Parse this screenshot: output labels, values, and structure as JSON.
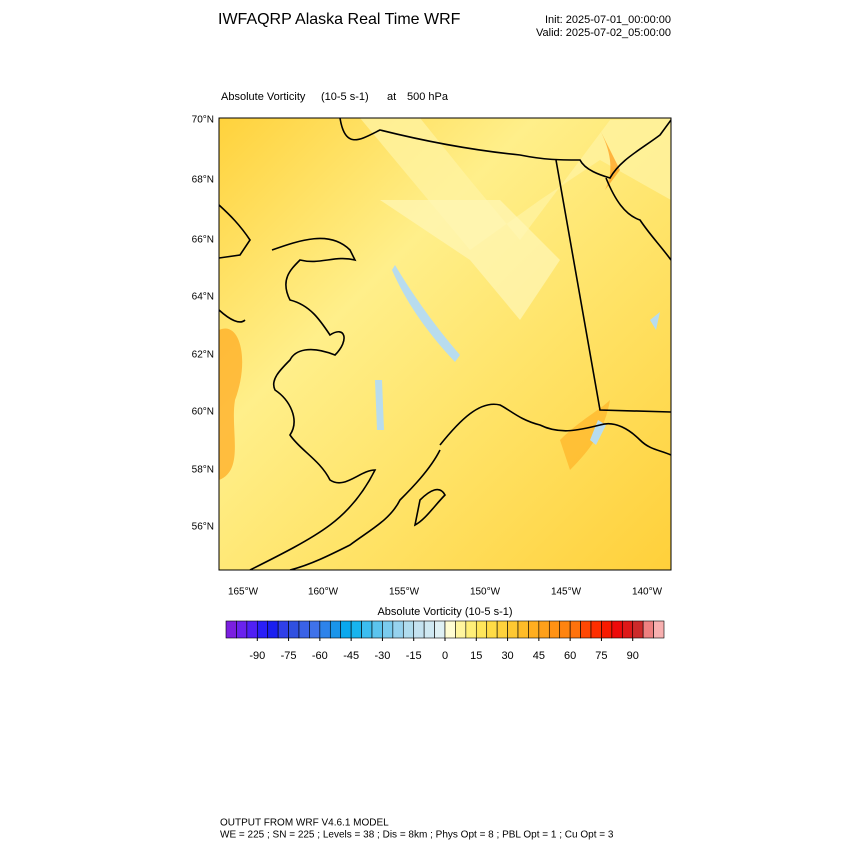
{
  "header": {
    "title": "IWFAQRP Alaska Real Time WRF",
    "init": "Init: 2025-07-01_00:00:00",
    "valid": "Valid: 2025-07-02_05:00:00"
  },
  "plot": {
    "field": "Absolute Vorticity",
    "units": "(10-5 s-1)",
    "at": "at",
    "level": "500 hPa",
    "lat_labels": [
      "70°N",
      "68°N",
      "66°N",
      "64°N",
      "62°N",
      "60°N",
      "58°N",
      "56°N"
    ],
    "lon_labels": [
      "165°W",
      "160°W",
      "155°W",
      "150°W",
      "145°W",
      "140°W"
    ]
  },
  "colorbar": {
    "title": "Absolute Vorticity  (10-5 s-1)",
    "range": [
      -105,
      105
    ],
    "ticks": [
      -90,
      -75,
      -60,
      -45,
      -30,
      -15,
      0,
      15,
      30,
      45,
      60,
      75,
      90
    ],
    "colors": [
      "#7b1fe0",
      "#6a22ee",
      "#5020f5",
      "#2a1ff8",
      "#1a1ff0",
      "#2f3fe8",
      "#3050e0",
      "#3a62e6",
      "#3f72ea",
      "#2d83ea",
      "#1a95ea",
      "#0aa8ee",
      "#18b4ee",
      "#3cbdf0",
      "#5cc4ee",
      "#7acbee",
      "#96d2ee",
      "#b0dcee",
      "#c4e2f0",
      "#cfe8f2",
      "#dff0f4",
      "#fffcd2",
      "#fff59e",
      "#ffef78",
      "#ffe65a",
      "#ffdc46",
      "#ffd23c",
      "#ffc832",
      "#ffbc28",
      "#ffae20",
      "#ffa01a",
      "#ff9214",
      "#ff8410",
      "#ff720c",
      "#ff4804",
      "#ff2e00",
      "#f81a00",
      "#ee0a0a",
      "#de1818",
      "#cc2a2a",
      "#ee8080",
      "#f8b0b0"
    ]
  },
  "footer": {
    "line1": "OUTPUT FROM WRF V4.6.1 MODEL",
    "line2": "WE = 225 ; SN = 225 ; Levels = 38 ; Dis = 8km ; Phys Opt = 8 ; PBL Opt = 1 ; Cu Opt = 3"
  }
}
